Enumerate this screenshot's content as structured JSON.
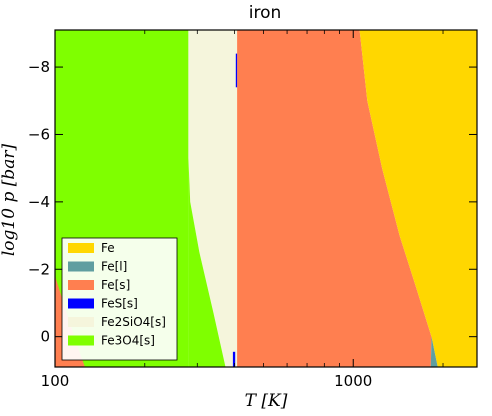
{
  "chart_data": {
    "type": "area",
    "title": "iron",
    "xlabel": "T [K]",
    "ylabel": "log10 p [bar]",
    "xscale": "log",
    "xlim": [
      100,
      2600
    ],
    "ylim": [
      0.9,
      -9.1
    ],
    "x_ticks": [
      100,
      1000
    ],
    "x_tick_labels": [
      "100",
      "1000"
    ],
    "y_ticks": [
      -8,
      -6,
      -4,
      -2,
      0
    ],
    "y_tick_labels": [
      "−8",
      "−6",
      "−4",
      "−2",
      "0"
    ],
    "grid": false,
    "legend_position": "lower-left",
    "series": [
      {
        "name": "Fe",
        "color": "#ffd700"
      },
      {
        "name": "Fe[l]",
        "color": "#5f9ea0"
      },
      {
        "name": "Fe[s]",
        "color": "#ff7f50"
      },
      {
        "name": "FeS[s]",
        "color": "#0000ff"
      },
      {
        "name": "Fe2SiO4[s]",
        "color": "#f5f5dc"
      },
      {
        "name": "Fe3O4[s]",
        "color": "#7fff00"
      }
    ]
  }
}
